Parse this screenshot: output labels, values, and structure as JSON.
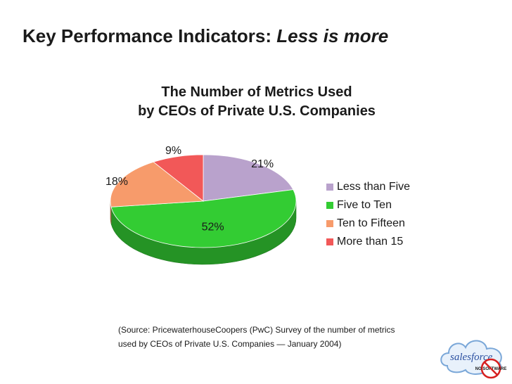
{
  "slide": {
    "title_main": "Key Performance Indicators:",
    "title_emphasis": "Less is more"
  },
  "chart_data": {
    "type": "pie",
    "title_line1": "The Number of Metrics Used",
    "title_line2": "by CEOs of Private U.S. Companies",
    "categories": [
      "Less than Five",
      "Five to Ten",
      "Ten to Fifteen",
      "More than 15"
    ],
    "values": [
      21,
      52,
      18,
      9
    ],
    "labels": [
      "21%",
      "52%",
      "18%",
      "9%"
    ],
    "colors": [
      "#b9a2cc",
      "#33cc33",
      "#f79b6b",
      "#f25858"
    ],
    "legend_position": "right",
    "style": "3d"
  },
  "source": {
    "line1": "(Source: PricewaterhouseCoopers (PwC) Survey of the number of metrics",
    "line2": "used by CEOs of Private U.S. Companies — January 2004)"
  },
  "logo": {
    "word": "salesforce",
    "seal": "NO SOFTWARE",
    "icon": "cloud-logo-icon"
  }
}
